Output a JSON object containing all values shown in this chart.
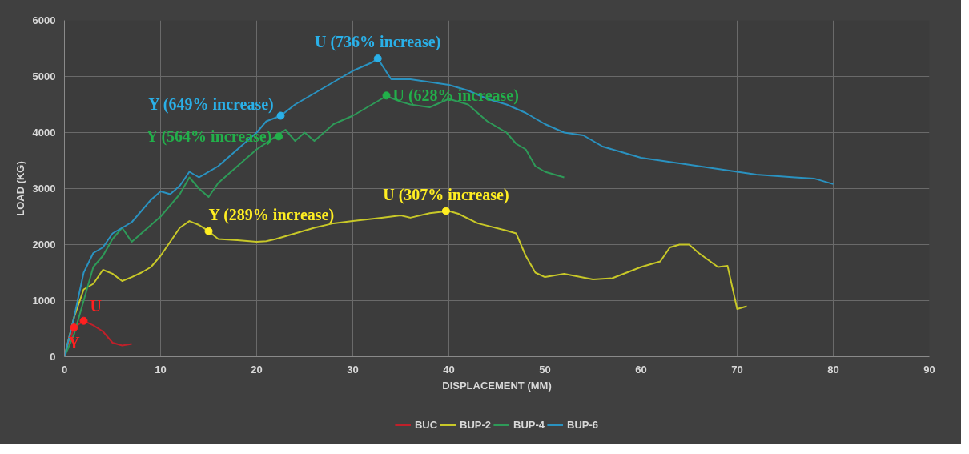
{
  "chart_data": {
    "type": "line",
    "xlabel": "DISPLACEMENT (MM)",
    "ylabel": "LOAD (KG)",
    "xlim": [
      0,
      90
    ],
    "xticks": [
      0,
      10,
      20,
      30,
      40,
      50,
      60,
      70,
      80,
      90
    ],
    "ylim": [
      0,
      6000
    ],
    "yticks": [
      0,
      1000,
      2000,
      3000,
      4000,
      5000,
      6000
    ],
    "grid": true,
    "legend": "bottom",
    "annotations": [
      {
        "text": "Y",
        "x": 1,
        "y": 520
      },
      {
        "text": "U",
        "x": 2,
        "y": 640
      },
      {
        "text": "Y (289% increase)",
        "x": 15,
        "y": 2240
      },
      {
        "text": "U (307% increase)",
        "x": 39.7,
        "y": 2600
      },
      {
        "text": "Y (564% increase)",
        "x": 22.3,
        "y": 3930
      },
      {
        "text": "U (628% increase)",
        "x": 33.5,
        "y": 4660
      },
      {
        "text": "Y (649% increase)",
        "x": 22.5,
        "y": 4300
      },
      {
        "text": "U (736% increase)",
        "x": 32.6,
        "y": 5320
      }
    ],
    "series": [
      {
        "name": "BUC",
        "color": "#c0202a",
        "x": [
          0,
          1,
          2,
          3,
          4,
          5,
          6,
          7
        ],
        "values": [
          0,
          520,
          640,
          560,
          450,
          250,
          200,
          230
        ]
      },
      {
        "name": "BUP-2",
        "color": "#c8c828",
        "x": [
          0,
          1,
          2,
          3,
          4,
          5,
          6,
          7,
          8,
          9,
          10,
          11,
          12,
          13,
          14,
          15,
          16,
          18,
          20,
          21,
          22,
          24,
          26,
          28,
          30,
          33,
          35,
          36,
          38,
          40,
          41,
          43,
          46,
          47,
          48,
          49,
          50,
          52,
          55,
          57,
          60,
          62,
          63,
          64,
          65,
          66,
          68,
          69,
          70,
          71
        ],
        "values": [
          0,
          700,
          1200,
          1300,
          1550,
          1480,
          1350,
          1420,
          1500,
          1600,
          1800,
          2050,
          2300,
          2420,
          2350,
          2240,
          2100,
          2080,
          2050,
          2060,
          2100,
          2200,
          2300,
          2380,
          2420,
          2480,
          2520,
          2480,
          2560,
          2600,
          2550,
          2380,
          2250,
          2200,
          1800,
          1500,
          1420,
          1480,
          1380,
          1400,
          1600,
          1700,
          1950,
          2000,
          2000,
          1850,
          1600,
          1620,
          850,
          900
        ]
      },
      {
        "name": "BUP-4",
        "color": "#2e9a58",
        "x": [
          0,
          1,
          2,
          3,
          4,
          5,
          6,
          7,
          8,
          10,
          12,
          13,
          14,
          15,
          16,
          18,
          20,
          22,
          23,
          24,
          25,
          26,
          28,
          30,
          32,
          33.5,
          35,
          36,
          38,
          40,
          42,
          44,
          46,
          47,
          48,
          49,
          50,
          52
        ],
        "values": [
          0,
          400,
          1000,
          1600,
          1800,
          2100,
          2300,
          2050,
          2200,
          2500,
          2900,
          3200,
          3000,
          2850,
          3100,
          3400,
          3700,
          3930,
          4050,
          3850,
          4000,
          3850,
          4150,
          4300,
          4500,
          4650,
          4550,
          4500,
          4450,
          4600,
          4500,
          4200,
          4000,
          3800,
          3700,
          3400,
          3300,
          3200
        ]
      },
      {
        "name": "BUP-6",
        "color": "#2a92c0",
        "x": [
          0,
          1,
          2,
          3,
          4,
          5,
          6,
          7,
          8,
          9,
          10,
          11,
          12,
          13,
          14,
          16,
          18,
          20,
          21,
          22.5,
          24,
          26,
          28,
          30,
          32,
          32.6,
          34,
          36,
          38,
          40,
          42,
          44,
          46,
          48,
          50,
          52,
          54,
          56,
          58,
          60,
          64,
          68,
          72,
          76,
          78,
          80
        ],
        "values": [
          0,
          700,
          1500,
          1850,
          1950,
          2200,
          2300,
          2400,
          2600,
          2800,
          2950,
          2900,
          3050,
          3300,
          3200,
          3400,
          3700,
          4000,
          4200,
          4300,
          4500,
          4700,
          4900,
          5100,
          5250,
          5320,
          4950,
          4950,
          4900,
          4850,
          4750,
          4600,
          4500,
          4350,
          4150,
          4000,
          3950,
          3750,
          3650,
          3550,
          3450,
          3350,
          3250,
          3200,
          3180,
          3080
        ]
      },
      {
        "type": "scatter",
        "marker": "circle",
        "color": "#ff2020",
        "x": [
          1,
          2
        ],
        "values": [
          520,
          640
        ]
      },
      {
        "type": "scatter",
        "marker": "circle",
        "color": "#ffee22",
        "x": [
          15,
          39.7
        ],
        "values": [
          2240,
          2600
        ]
      },
      {
        "type": "scatter",
        "marker": "circle",
        "color": "#22b04a",
        "x": [
          22.3,
          33.5
        ],
        "values": [
          3930,
          4660
        ]
      },
      {
        "type": "scatter",
        "marker": "circle",
        "color": "#2ab0e8",
        "x": [
          22.5,
          32.6
        ],
        "values": [
          4300,
          5320
        ]
      }
    ]
  }
}
